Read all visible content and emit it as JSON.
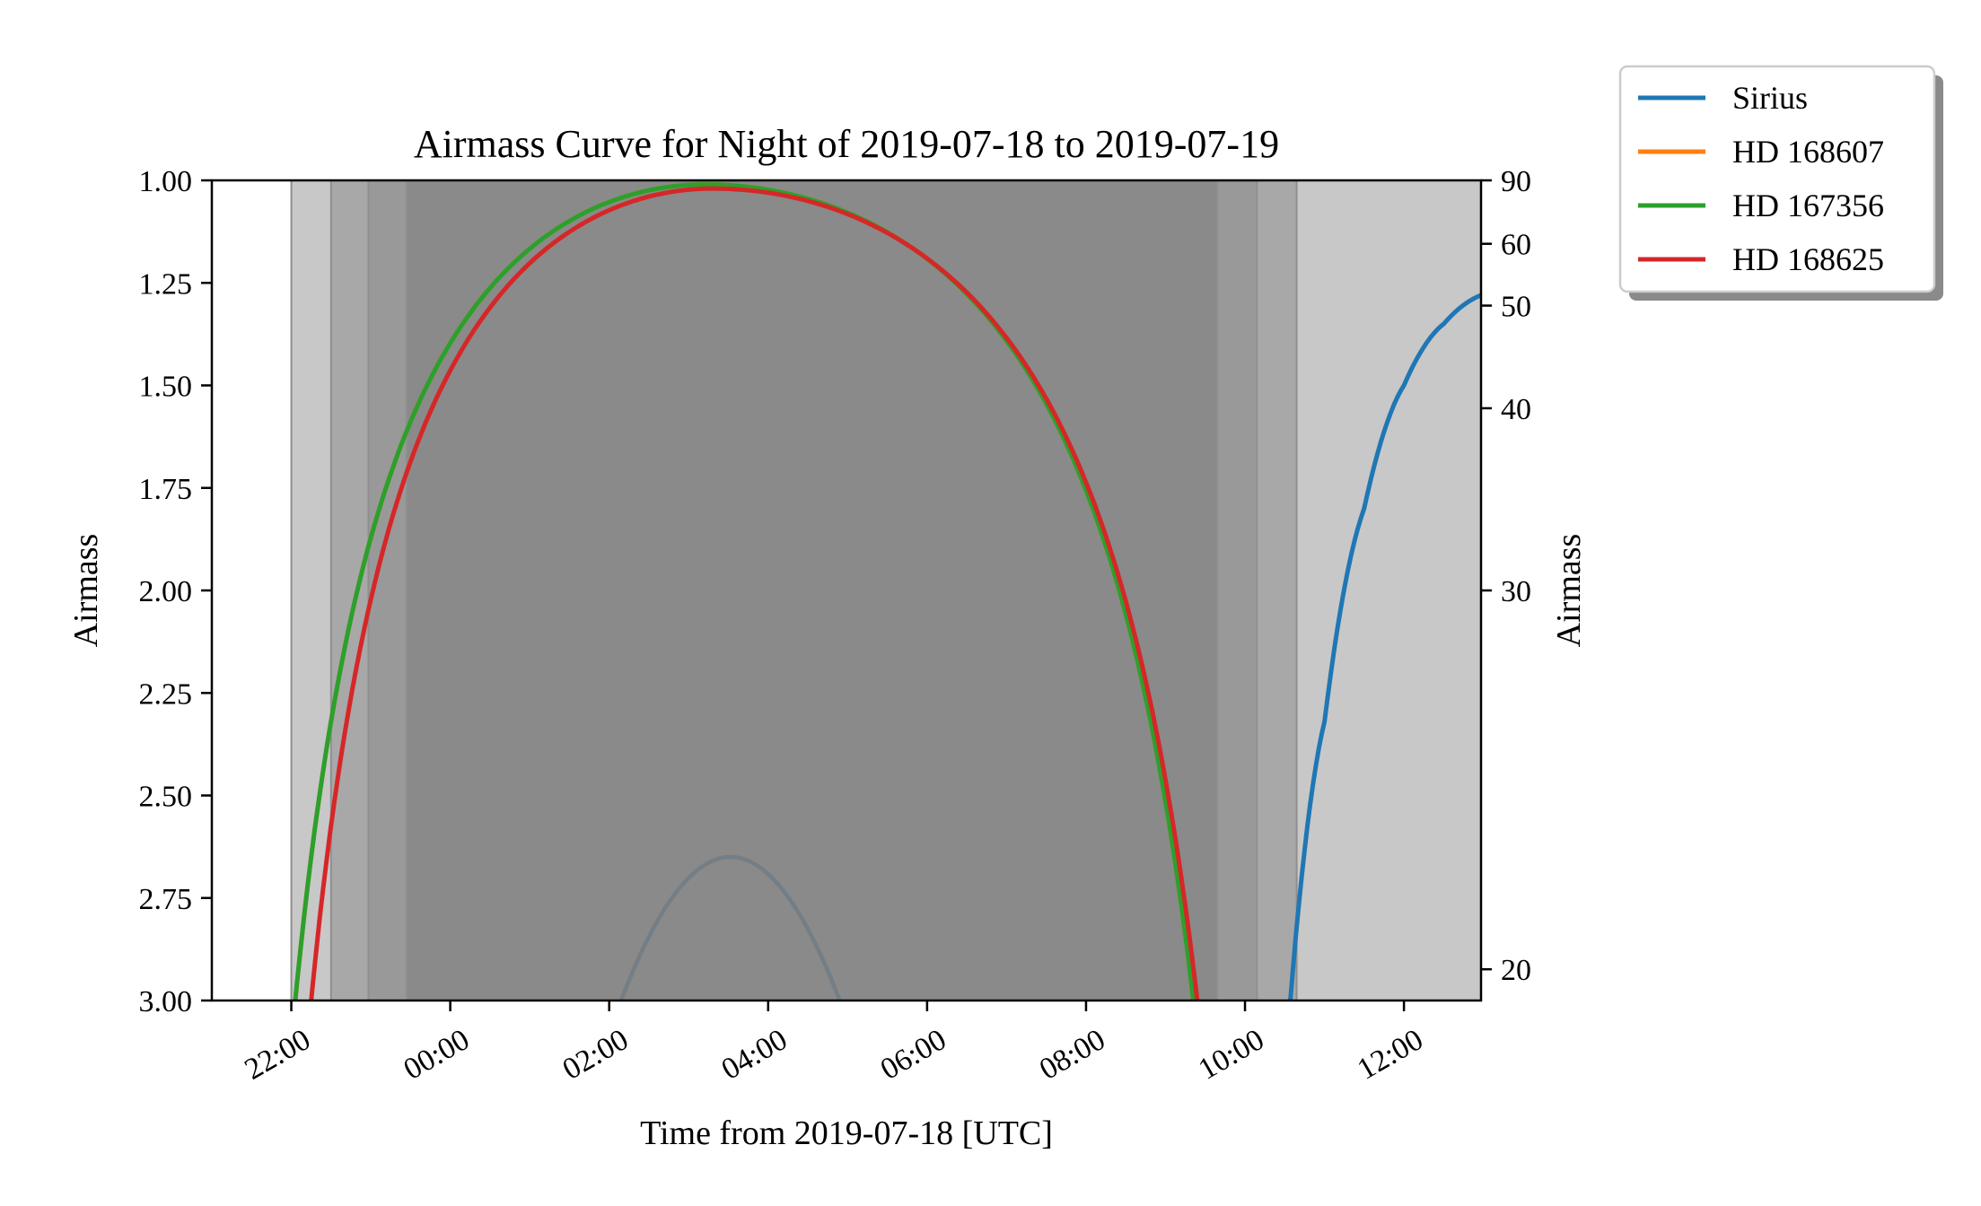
{
  "chart_data": {
    "type": "line",
    "title": "Airmass Curve for Night of 2019-07-18 to 2019-07-19",
    "xlabel": "Time from 2019-07-18 [UTC]",
    "ylabel": "Airmass",
    "ylabel_right": "Airmass",
    "x_ticks": [
      "22:00",
      "00:00",
      "02:00",
      "04:00",
      "06:00",
      "08:00",
      "10:00",
      "12:00"
    ],
    "x_tick_hours": [
      22,
      24,
      26,
      28,
      30,
      32,
      34,
      36
    ],
    "xlim_hours": [
      21,
      36.97
    ],
    "y_ticks": [
      "1.00",
      "1.25",
      "1.50",
      "1.75",
      "2.00",
      "2.25",
      "2.50",
      "2.75",
      "3.00"
    ],
    "ylim": [
      1.0,
      3.0
    ],
    "y_inverted": true,
    "right_ticks": [
      {
        "label": "90",
        "altitude": 90
      },
      {
        "label": "60",
        "altitude": 60
      },
      {
        "label": "50",
        "altitude": 50
      },
      {
        "label": "40",
        "altitude": 40
      },
      {
        "label": "30",
        "altitude": 30
      },
      {
        "label": "20",
        "altitude": 20
      }
    ],
    "twilight_bands": [
      {
        "start_hour": 22.0,
        "end_hour": 36.97,
        "shade": "#c8c8c8"
      },
      {
        "start_hour": 22.5,
        "end_hour": 34.65,
        "shade": "#a8a8a8"
      },
      {
        "start_hour": 22.97,
        "end_hour": 34.15,
        "shade": "#999999"
      },
      {
        "start_hour": 23.45,
        "end_hour": 33.65,
        "shade": "#8a8a8a"
      }
    ],
    "moon": {
      "color": "#6b7a84",
      "peak_hour": 27.5,
      "peak_airmass": 2.65,
      "x_at_3": [
        26.15,
        28.9
      ]
    },
    "series": [
      {
        "name": "Sirius",
        "color": "#1f77b4",
        "kind": "sirius",
        "x_at_3": 34.57,
        "points": [
          [
            34.57,
            3.0
          ],
          [
            35.0,
            2.32
          ],
          [
            35.5,
            1.8
          ],
          [
            36.0,
            1.5
          ],
          [
            36.5,
            1.35
          ],
          [
            36.97,
            1.28
          ]
        ]
      },
      {
        "name": "HD 168607",
        "color": "#ff7f0e",
        "kind": "arc",
        "rise_hour": 22.05,
        "set_hour": 33.35,
        "peak_hour": 27.2,
        "peak_airmass": 1.01
      },
      {
        "name": "HD 167356",
        "color": "#2ca02c",
        "kind": "arc",
        "rise_hour": 22.05,
        "set_hour": 33.35,
        "peak_hour": 27.2,
        "peak_airmass": 1.01
      },
      {
        "name": "HD 168625",
        "color": "#d62728",
        "kind": "arc",
        "rise_hour": 22.25,
        "set_hour": 33.4,
        "peak_hour": 27.3,
        "peak_airmass": 1.02
      }
    ],
    "legend_placement": "outside-top-right",
    "grid": false
  }
}
